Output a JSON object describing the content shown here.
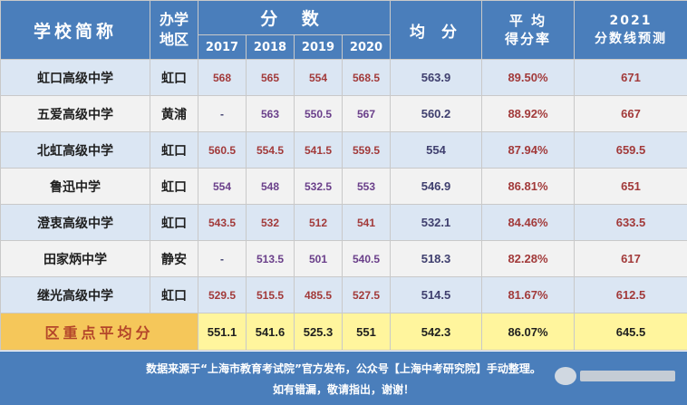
{
  "headers": {
    "school": "学校简称",
    "district_line1": "办学",
    "district_line2": "地区",
    "scores": "分 数",
    "years": [
      "2017",
      "2018",
      "2019",
      "2020"
    ],
    "average": "均 分",
    "rate_line1": "平 均",
    "rate_line2": "得分率",
    "pred_line1": "2021",
    "pred_line2": "分数线预测"
  },
  "rows": [
    {
      "school": "虹口高级中学",
      "district": "虹口",
      "y2017": "568",
      "y2018": "565",
      "y2019": "554",
      "y2020": "568.5",
      "avg": "563.9",
      "rate": "89.50%",
      "pred": "671"
    },
    {
      "school": "五爱高级中学",
      "district": "黄浦",
      "y2017": "-",
      "y2018": "563",
      "y2019": "550.5",
      "y2020": "567",
      "avg": "560.2",
      "rate": "88.92%",
      "pred": "667"
    },
    {
      "school": "北虹高级中学",
      "district": "虹口",
      "y2017": "560.5",
      "y2018": "554.5",
      "y2019": "541.5",
      "y2020": "559.5",
      "avg": "554",
      "rate": "87.94%",
      "pred": "659.5"
    },
    {
      "school": "鲁迅中学",
      "district": "虹口",
      "y2017": "554",
      "y2018": "548",
      "y2019": "532.5",
      "y2020": "553",
      "avg": "546.9",
      "rate": "86.81%",
      "pred": "651"
    },
    {
      "school": "澄衷高级中学",
      "district": "虹口",
      "y2017": "543.5",
      "y2018": "532",
      "y2019": "512",
      "y2020": "541",
      "avg": "532.1",
      "rate": "84.46%",
      "pred": "633.5"
    },
    {
      "school": "田家炳中学",
      "district": "静安",
      "y2017": "-",
      "y2018": "513.5",
      "y2019": "501",
      "y2020": "540.5",
      "avg": "518.3",
      "rate": "82.28%",
      "pred": "617"
    },
    {
      "school": "继光高级中学",
      "district": "虹口",
      "y2017": "529.5",
      "y2018": "515.5",
      "y2019": "485.5",
      "y2020": "527.5",
      "avg": "514.5",
      "rate": "81.67%",
      "pred": "612.5"
    }
  ],
  "summary": {
    "label": "区重点平均分",
    "y2017": "551.1",
    "y2018": "541.6",
    "y2019": "525.3",
    "y2020": "551",
    "avg": "542.3",
    "rate": "86.07%",
    "pred": "645.5"
  },
  "footer": {
    "line1": "数据来源于“上海市教育考试院”官方发布，公众号【上海中考研究院】手动整理。",
    "line2": "如有错漏，敬请指出，谢谢！"
  },
  "colors": {
    "header_bg": "#4a7ebb",
    "row_odd": "#dbe6f3",
    "row_even": "#f2f2f2",
    "summary_label_bg": "#f5c75a",
    "summary_bg": "#fff59d",
    "value_red": "#a23a3a"
  }
}
